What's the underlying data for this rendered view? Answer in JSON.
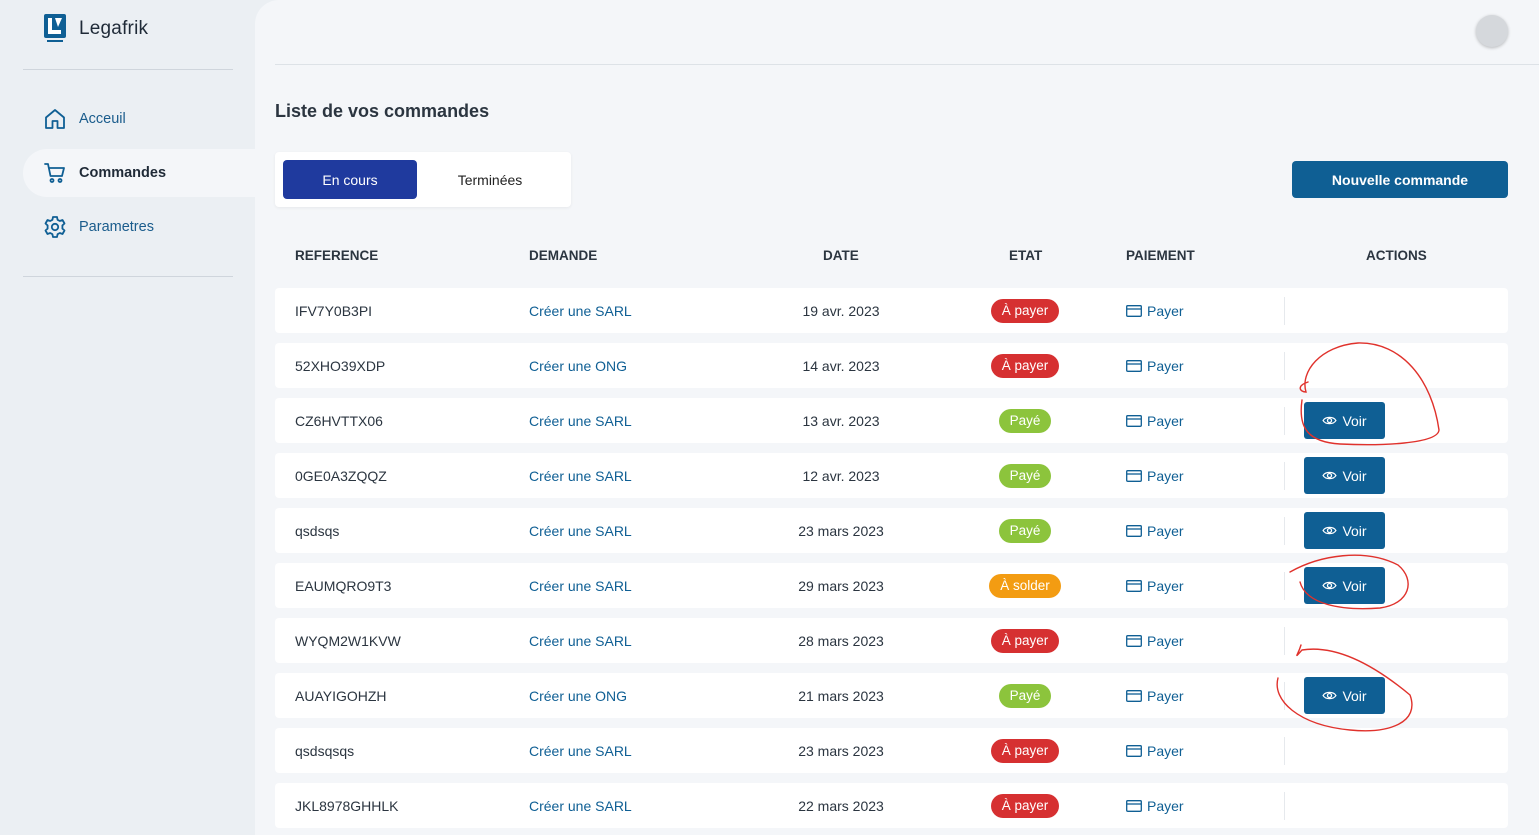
{
  "app": {
    "name": "Legafrik"
  },
  "sidebar": {
    "items": [
      {
        "label": "Acceuil",
        "icon": "home-icon",
        "active": false
      },
      {
        "label": "Commandes",
        "icon": "cart-icon",
        "active": true
      },
      {
        "label": "Parametres",
        "icon": "gear-icon",
        "active": false
      }
    ]
  },
  "page": {
    "title": "Liste de vos commandes",
    "tabs": [
      {
        "label": "En cours",
        "active": true
      },
      {
        "label": "Terminées",
        "active": false
      }
    ],
    "new_button": "Nouvelle commande"
  },
  "table": {
    "headers": {
      "reference": "REFERENCE",
      "demande": "DEMANDE",
      "date": "DATE",
      "etat": "ETAT",
      "paiement": "PAIEMENT",
      "actions": "ACTIONS"
    },
    "pay_label": "Payer",
    "view_label": "Voir",
    "rows": [
      {
        "reference": "IFV7Y0B3PI",
        "demande": "Créer une SARL",
        "date": "19 avr. 2023",
        "etat": "À payer",
        "etat_color": "#d63031",
        "voir": false
      },
      {
        "reference": "52XHO39XDP",
        "demande": "Créer une ONG",
        "date": "14 avr. 2023",
        "etat": "À payer",
        "etat_color": "#d63031",
        "voir": false
      },
      {
        "reference": "CZ6HVTTX06",
        "demande": "Créer une SARL",
        "date": "13 avr. 2023",
        "etat": "Payé",
        "etat_color": "#8cc43c",
        "voir": true
      },
      {
        "reference": "0GE0A3ZQQZ",
        "demande": "Créer une SARL",
        "date": "12 avr. 2023",
        "etat": "Payé",
        "etat_color": "#8cc43c",
        "voir": true
      },
      {
        "reference": "qsdsqs",
        "demande": "Créer une SARL",
        "date": "23 mars 2023",
        "etat": "Payé",
        "etat_color": "#8cc43c",
        "voir": true
      },
      {
        "reference": "EAUMQRO9T3",
        "demande": "Créer une SARL",
        "date": "29 mars 2023",
        "etat": "À solder",
        "etat_color": "#f39c12",
        "voir": true
      },
      {
        "reference": "WYQM2W1KVW",
        "demande": "Créer une SARL",
        "date": "28 mars 2023",
        "etat": "À payer",
        "etat_color": "#d63031",
        "voir": false
      },
      {
        "reference": "AUAYIGOHZH",
        "demande": "Créer une ONG",
        "date": "21 mars 2023",
        "etat": "Payé",
        "etat_color": "#8cc43c",
        "voir": true
      },
      {
        "reference": "qsdsqsqs",
        "demande": "Créer une SARL",
        "date": "23 mars 2023",
        "etat": "À payer",
        "etat_color": "#d63031",
        "voir": false
      },
      {
        "reference": "JKL8978GHHLK",
        "demande": "Créer une SARL",
        "date": "22 mars 2023",
        "etat": "À payer",
        "etat_color": "#d63031",
        "voir": false
      }
    ]
  },
  "colors": {
    "primary": "#0f5f94",
    "tab_active": "#1f3a9e",
    "annotation": "#e0322c"
  }
}
